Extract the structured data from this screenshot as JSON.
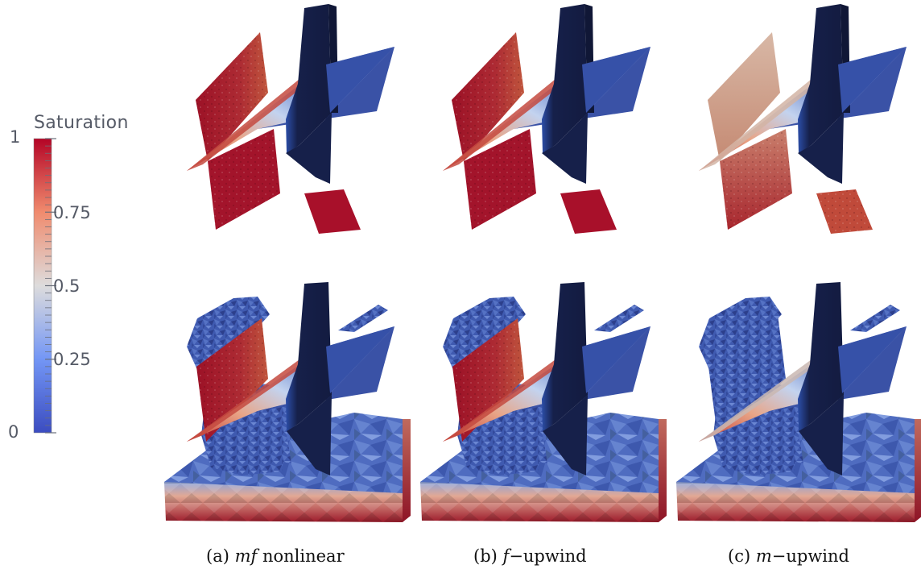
{
  "colorbar": {
    "title": "Saturation",
    "ticks": [
      {
        "value": 1,
        "label": "1"
      },
      {
        "value": 0.75,
        "label": "0.75"
      },
      {
        "value": 0.5,
        "label": "0.5"
      },
      {
        "value": 0.25,
        "label": "0.25"
      },
      {
        "value": 0,
        "label": "0"
      }
    ],
    "colors": [
      "#3b4cc0",
      "#7396f5",
      "#dddcdc",
      "#f08b6e",
      "#b40426"
    ]
  },
  "panels": [
    {
      "id": "a",
      "prefix": "(a)",
      "var": "mf",
      "suffix": "nonlinear",
      "fracture_high": "#ad1427"
    },
    {
      "id": "b",
      "prefix": "(b)",
      "var": "f",
      "suffix": "−upwind",
      "fracture_high": "#ad1427"
    },
    {
      "id": "c",
      "prefix": "(c)",
      "var": "m",
      "suffix": "−upwind",
      "fracture_high": "#c9a08c"
    }
  ],
  "palette": {
    "dark_plane": "#16204a",
    "blue_plane": "#3a52a6",
    "red": "#a3142b",
    "crumb": "#3c56ad"
  }
}
